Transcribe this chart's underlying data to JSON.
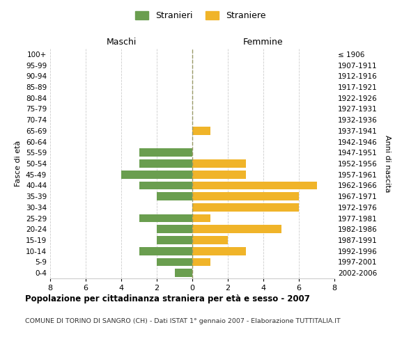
{
  "age_groups": [
    "0-4",
    "5-9",
    "10-14",
    "15-19",
    "20-24",
    "25-29",
    "30-34",
    "35-39",
    "40-44",
    "45-49",
    "50-54",
    "55-59",
    "60-64",
    "65-69",
    "70-74",
    "75-79",
    "80-84",
    "85-89",
    "90-94",
    "95-99",
    "100+"
  ],
  "birth_years": [
    "2002-2006",
    "1997-2001",
    "1992-1996",
    "1987-1991",
    "1982-1986",
    "1977-1981",
    "1972-1976",
    "1967-1971",
    "1962-1966",
    "1957-1961",
    "1952-1956",
    "1947-1951",
    "1942-1946",
    "1937-1941",
    "1932-1936",
    "1927-1931",
    "1922-1926",
    "1917-1921",
    "1912-1916",
    "1907-1911",
    "≤ 1906"
  ],
  "males": [
    1,
    2,
    3,
    2,
    2,
    3,
    0,
    2,
    3,
    4,
    3,
    3,
    0,
    0,
    0,
    0,
    0,
    0,
    0,
    0,
    0
  ],
  "females": [
    0,
    1,
    3,
    2,
    5,
    1,
    6,
    6,
    7,
    3,
    3,
    0,
    0,
    1,
    0,
    0,
    0,
    0,
    0,
    0,
    0
  ],
  "male_color": "#6a9e4f",
  "female_color": "#f0b429",
  "xlim": 8,
  "title": "Popolazione per cittadinanza straniera per età e sesso - 2007",
  "subtitle": "COMUNE DI TORINO DI SANGRO (CH) - Dati ISTAT 1° gennaio 2007 - Elaborazione TUTTITALIA.IT",
  "ylabel_left": "Fasce di età",
  "ylabel_right": "Anni di nascita",
  "xlabel_maschi": "Maschi",
  "xlabel_femmine": "Femmine",
  "legend_males": "Stranieri",
  "legend_females": "Straniere",
  "bg_color": "#ffffff",
  "grid_color": "#cccccc"
}
